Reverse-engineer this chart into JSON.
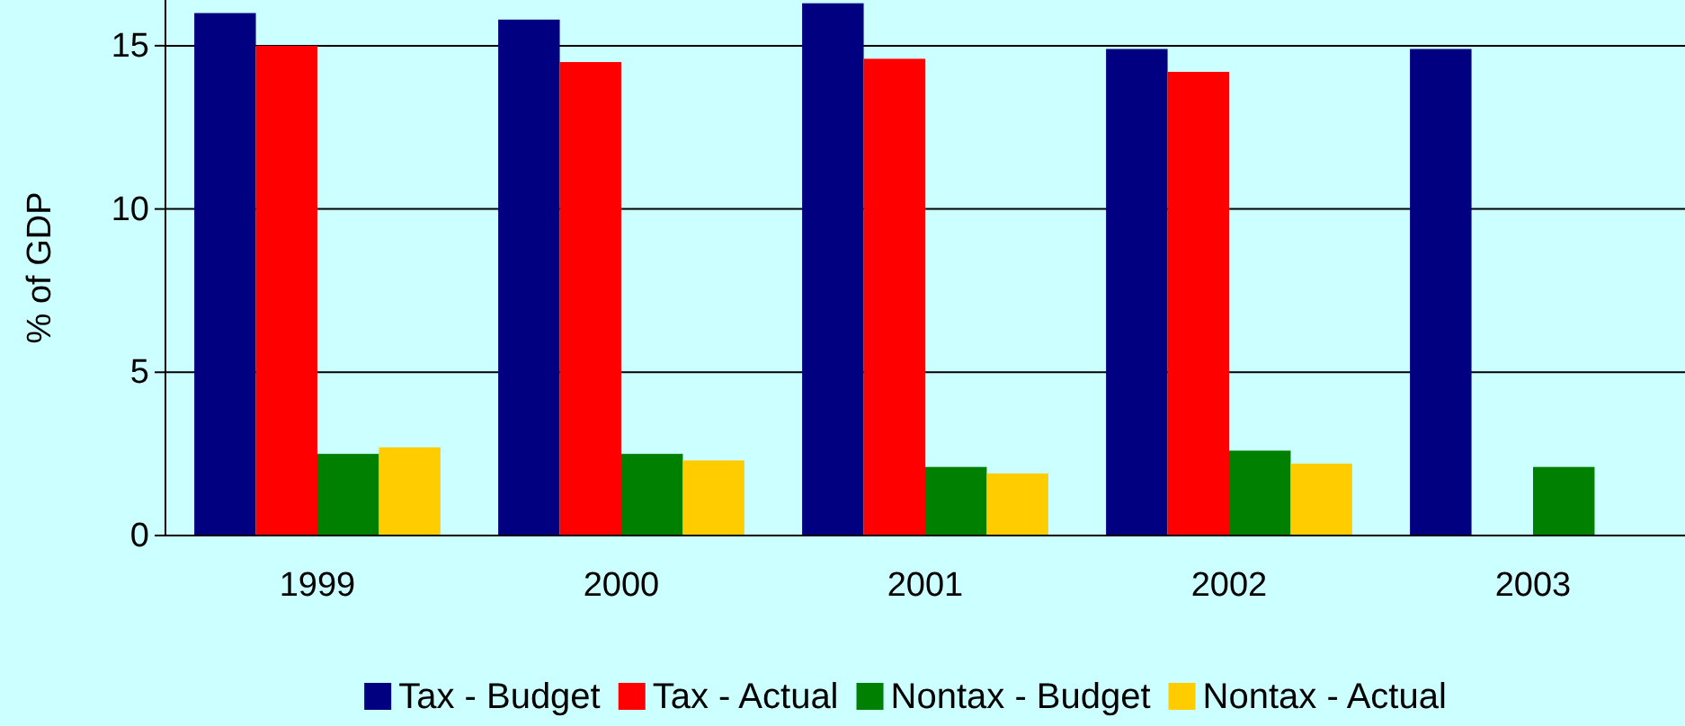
{
  "chart_data": {
    "type": "bar",
    "ylabel": "% of GDP",
    "categories": [
      "1999",
      "2000",
      "2001",
      "2002",
      "2003"
    ],
    "series": [
      {
        "name": "Tax - Budget",
        "color": "#000080",
        "values": [
          16.0,
          15.8,
          16.3,
          14.9,
          14.9
        ]
      },
      {
        "name": "Tax - Actual",
        "color": "#ff0000",
        "values": [
          15.0,
          14.5,
          14.6,
          14.2,
          null
        ]
      },
      {
        "name": "Nontax - Budget",
        "color": "#008000",
        "values": [
          2.5,
          2.5,
          2.1,
          2.6,
          2.1
        ]
      },
      {
        "name": "Nontax - Actual",
        "color": "#ffcc00",
        "values": [
          2.7,
          2.3,
          1.9,
          2.2,
          null
        ]
      }
    ],
    "ylim": [
      0,
      16.4
    ],
    "yticks": [
      0,
      5,
      10,
      15
    ],
    "grid": "y",
    "legend": "bottom"
  }
}
